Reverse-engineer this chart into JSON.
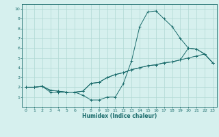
{
  "xlabel": "Humidex (Indice chaleur)",
  "ylabel": "",
  "bg_color": "#d6f0ee",
  "grid_color": "#b0d8d4",
  "line_color": "#1a6b6b",
  "xlim": [
    -0.5,
    23.5
  ],
  "ylim": [
    0,
    10.5
  ],
  "xticks": [
    0,
    1,
    2,
    3,
    4,
    5,
    6,
    7,
    8,
    9,
    10,
    11,
    12,
    13,
    14,
    15,
    16,
    17,
    18,
    19,
    20,
    21,
    22,
    23
  ],
  "yticks": [
    1,
    2,
    3,
    4,
    5,
    6,
    7,
    8,
    9,
    10
  ],
  "curve1_x": [
    0,
    1,
    2,
    3,
    4,
    5,
    6,
    7,
    8,
    9,
    10,
    11,
    12,
    13,
    14,
    15,
    16,
    17,
    18,
    19,
    20,
    21,
    22,
    23
  ],
  "curve1_y": [
    2.0,
    2.0,
    2.1,
    1.5,
    1.5,
    1.5,
    1.5,
    1.2,
    0.7,
    0.7,
    1.0,
    1.0,
    2.4,
    4.7,
    8.2,
    9.7,
    9.8,
    9.0,
    8.2,
    7.0,
    6.0,
    5.9,
    5.4,
    4.5
  ],
  "curve2_x": [
    0,
    1,
    2,
    3,
    4,
    5,
    6,
    7,
    8,
    9,
    10,
    11,
    12,
    13,
    14,
    15,
    16,
    17,
    18,
    19,
    20,
    21,
    22,
    23
  ],
  "curve2_y": [
    2.0,
    2.0,
    2.1,
    1.7,
    1.6,
    1.5,
    1.5,
    1.6,
    2.4,
    2.5,
    3.0,
    3.3,
    3.5,
    3.8,
    4.0,
    4.2,
    4.3,
    4.5,
    4.6,
    4.8,
    5.0,
    5.2,
    5.4,
    4.5
  ],
  "curve3_x": [
    0,
    1,
    2,
    3,
    4,
    5,
    6,
    7,
    8,
    9,
    10,
    11,
    12,
    13,
    14,
    15,
    16,
    17,
    18,
    19,
    20,
    21,
    22,
    23
  ],
  "curve3_y": [
    2.0,
    2.0,
    2.1,
    1.7,
    1.6,
    1.5,
    1.5,
    1.6,
    2.4,
    2.5,
    3.0,
    3.3,
    3.5,
    3.8,
    4.0,
    4.2,
    4.3,
    4.5,
    4.6,
    4.8,
    6.0,
    5.9,
    5.4,
    4.5
  ]
}
